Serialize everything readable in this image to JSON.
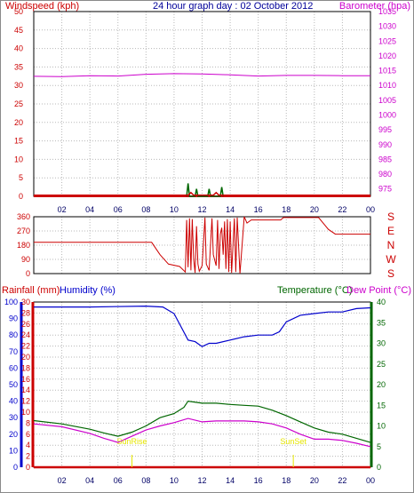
{
  "colors": {
    "wind": "#cc0000",
    "gust": "#006600",
    "baro": "#cc00cc",
    "humidity": "#0000cc",
    "temperature": "#006600",
    "dewpoint": "#cc00cc",
    "rain": "#cc0000",
    "grid": "#b8b8b8",
    "title": "#000099",
    "sun": "#e6e600"
  },
  "chart_data": [
    {
      "type": "line",
      "title": "24 hour graph day : 02 October 2012",
      "left_label": "Windspeed (kph)",
      "right_label": "Barometer (hpa)",
      "x_ticks": [
        "02",
        "04",
        "06",
        "08",
        "10",
        "12",
        "14",
        "16",
        "18",
        "20",
        "22",
        "00"
      ],
      "y_left_ticks": [
        "0",
        "5",
        "10",
        "15",
        "20",
        "25",
        "30",
        "35",
        "40",
        "45",
        "50"
      ],
      "y_left_range": [
        0,
        50
      ],
      "y_right_ticks": [
        "975",
        "980",
        "985",
        "990",
        "995",
        "1000",
        "1005",
        "1010",
        "1015",
        "1020",
        "1025",
        "1030",
        "1035"
      ],
      "y_right_range": [
        972.5,
        1035
      ],
      "series": [
        {
          "key": "barometer",
          "axis": "right",
          "points": [
            [
              0,
              1013.1
            ],
            [
              2,
              1013.0
            ],
            [
              4,
              1013.3
            ],
            [
              6,
              1013.2
            ],
            [
              8,
              1013.8
            ],
            [
              10,
              1014.0
            ],
            [
              12,
              1013.9
            ],
            [
              14,
              1013.6
            ],
            [
              16,
              1013.2
            ],
            [
              18,
              1013.4
            ],
            [
              20,
              1013.4
            ],
            [
              22,
              1013.3
            ],
            [
              24,
              1013.3
            ]
          ]
        },
        {
          "key": "wind_gust",
          "axis": "left",
          "points": [
            [
              10.9,
              0
            ],
            [
              11,
              3.5
            ],
            [
              11.1,
              0
            ],
            [
              11.5,
              0
            ],
            [
              11.6,
              2
            ],
            [
              11.7,
              0
            ],
            [
              12.4,
              0
            ],
            [
              12.5,
              2
            ],
            [
              12.6,
              0
            ],
            [
              13.3,
              0
            ],
            [
              13.4,
              2.5
            ],
            [
              13.5,
              0
            ]
          ]
        },
        {
          "key": "wind_speed",
          "axis": "left",
          "points": [
            [
              0,
              0.3
            ],
            [
              11,
              0.3
            ],
            [
              11.2,
              1
            ],
            [
              11.4,
              0.3
            ],
            [
              12.8,
              0.3
            ],
            [
              13,
              1
            ],
            [
              13.2,
              0.3
            ],
            [
              24,
              0.3
            ]
          ]
        }
      ]
    },
    {
      "type": "line",
      "title": "",
      "left_label": "",
      "right_label": "",
      "y_left_ticks": [
        "0",
        "90",
        "180",
        "270",
        "360"
      ],
      "y_left_range": [
        0,
        360
      ],
      "compass": [
        "E",
        "N",
        "W",
        "S"
      ],
      "compass_top": "S",
      "series": [
        {
          "key": "wind_direction",
          "points": [
            [
              0,
              198
            ],
            [
              8.4,
              198
            ],
            [
              9,
              120
            ],
            [
              9.6,
              60
            ],
            [
              10.4,
              45
            ],
            [
              10.8,
              10
            ],
            [
              10.9,
              340
            ],
            [
              11.0,
              40
            ],
            [
              11.1,
              350
            ],
            [
              11.2,
              20
            ],
            [
              11.3,
              345
            ],
            [
              11.4,
              90
            ],
            [
              11.5,
              5
            ],
            [
              11.6,
              300
            ],
            [
              11.7,
              60
            ],
            [
              11.8,
              15
            ],
            [
              12,
              50
            ],
            [
              12.2,
              355
            ],
            [
              12.3,
              60
            ],
            [
              12.5,
              20
            ],
            [
              12.7,
              350
            ],
            [
              12.8,
              120
            ],
            [
              13,
              50
            ],
            [
              13.1,
              340
            ],
            [
              13.2,
              30
            ],
            [
              13.3,
              250
            ],
            [
              13.4,
              290
            ],
            [
              13.5,
              120
            ],
            [
              13.6,
              330
            ],
            [
              13.7,
              30
            ],
            [
              13.8,
              345
            ],
            [
              13.9,
              10
            ],
            [
              14,
              330
            ],
            [
              14.1,
              5
            ],
            [
              14.3,
              350
            ],
            [
              14.4,
              10
            ],
            [
              14.5,
              355
            ],
            [
              14.7,
              0
            ],
            [
              15,
              360
            ],
            [
              15.2,
              320
            ],
            [
              15.5,
              340
            ],
            [
              16,
              340
            ],
            [
              17.6,
              340
            ],
            [
              17.8,
              355
            ],
            [
              20.3,
              355
            ],
            [
              21,
              280
            ],
            [
              21.5,
              250
            ],
            [
              24,
              250
            ]
          ]
        }
      ]
    },
    {
      "type": "line",
      "title": "",
      "rain_label": "Rainfall (mm)",
      "humidity_label": "Humidity (%)",
      "temperature_label": "Temperature (°C)",
      "dewpoint_label": "Dew Point (°C)",
      "x_ticks": [
        "02",
        "04",
        "06",
        "08",
        "10",
        "12",
        "14",
        "16",
        "18",
        "20",
        "22",
        "00"
      ],
      "rain_ticks": [
        "0",
        "2",
        "4",
        "6",
        "8",
        "10",
        "12",
        "14",
        "16",
        "18",
        "20",
        "22",
        "24",
        "26",
        "28",
        "30"
      ],
      "rain_range": [
        0,
        30
      ],
      "humidity_ticks": [
        "0",
        "10",
        "20",
        "30",
        "40",
        "50",
        "60",
        "70",
        "80",
        "90",
        "100"
      ],
      "humidity_range": [
        0,
        100
      ],
      "temp_ticks": [
        "0",
        "5",
        "10",
        "15",
        "20",
        "25",
        "30",
        "35",
        "40"
      ],
      "temp_range": [
        0,
        40
      ],
      "sunrise_label": "SunRise",
      "sunset_label": "SunSet",
      "sunrise_x": 7.0,
      "sunset_x": 18.5,
      "series": [
        {
          "key": "humidity",
          "axis": "humidity",
          "points": [
            [
              0,
              97
            ],
            [
              4,
              97
            ],
            [
              8,
              97.5
            ],
            [
              9.2,
              97
            ],
            [
              10,
              93
            ],
            [
              10.5,
              85
            ],
            [
              11,
              77
            ],
            [
              11.5,
              76
            ],
            [
              12,
              73
            ],
            [
              12.5,
              75
            ],
            [
              13,
              75
            ],
            [
              14,
              77
            ],
            [
              15,
              79
            ],
            [
              16,
              80
            ],
            [
              17,
              80
            ],
            [
              17.5,
              82
            ],
            [
              18,
              88
            ],
            [
              19,
              92
            ],
            [
              20,
              93
            ],
            [
              21,
              94
            ],
            [
              22,
              94
            ],
            [
              23,
              96
            ],
            [
              24,
              96.5
            ]
          ]
        },
        {
          "key": "temperature",
          "axis": "temp",
          "points": [
            [
              0,
              11.3
            ],
            [
              2,
              10.5
            ],
            [
              4,
              9.2
            ],
            [
              5,
              8.3
            ],
            [
              6,
              7.5
            ],
            [
              7,
              8.5
            ],
            [
              8,
              10
            ],
            [
              9,
              12
            ],
            [
              10,
              13
            ],
            [
              10.7,
              14.5
            ],
            [
              11,
              16
            ],
            [
              12,
              15.5
            ],
            [
              13,
              15.5
            ],
            [
              14,
              15.2
            ],
            [
              15,
              15
            ],
            [
              16,
              14.8
            ],
            [
              17,
              13.8
            ],
            [
              18,
              12.5
            ],
            [
              19,
              11
            ],
            [
              20,
              9.5
            ],
            [
              21,
              8.5
            ],
            [
              22,
              8
            ],
            [
              23,
              7
            ],
            [
              24,
              6
            ]
          ]
        },
        {
          "key": "dewpoint",
          "axis": "temp",
          "points": [
            [
              0,
              10.5
            ],
            [
              2,
              9.8
            ],
            [
              4,
              8.2
            ],
            [
              5,
              7
            ],
            [
              6,
              6
            ],
            [
              7,
              7.5
            ],
            [
              8,
              9
            ],
            [
              9,
              10
            ],
            [
              10,
              10.8
            ],
            [
              11,
              11.8
            ],
            [
              12,
              11
            ],
            [
              13,
              11.2
            ],
            [
              14,
              11.2
            ],
            [
              15,
              11.2
            ],
            [
              16,
              11
            ],
            [
              17,
              10.5
            ],
            [
              18,
              9.5
            ],
            [
              19,
              8
            ],
            [
              20,
              6.8
            ],
            [
              21,
              6.8
            ],
            [
              22,
              6.5
            ],
            [
              23,
              5.8
            ],
            [
              24,
              5
            ]
          ]
        },
        {
          "key": "rainfall",
          "axis": "rain",
          "points": [
            [
              0,
              0
            ],
            [
              24,
              0
            ]
          ]
        }
      ]
    }
  ]
}
